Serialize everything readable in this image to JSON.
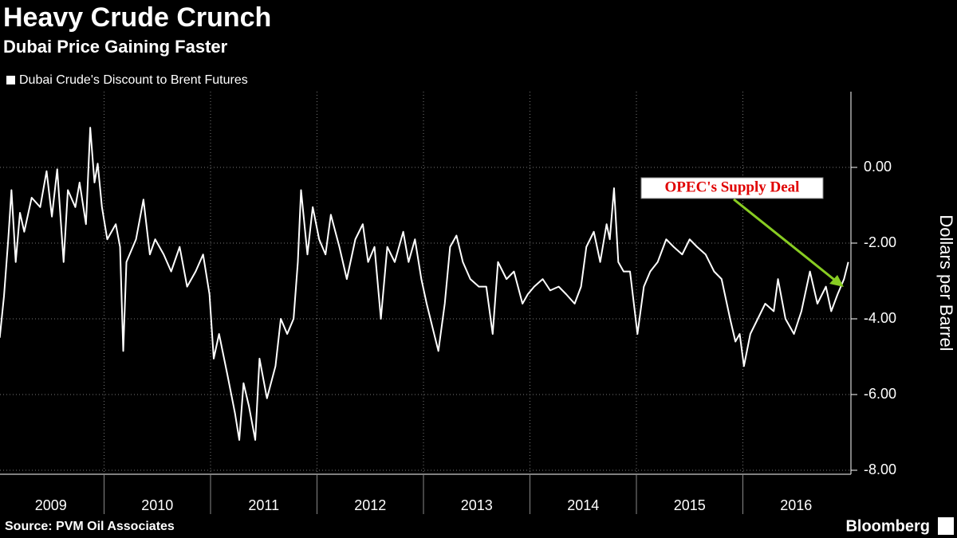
{
  "chart_data": {
    "type": "line",
    "title": "Heavy Crude Crunch",
    "subtitle": "Dubai Price Gaining Faster",
    "y_label": "Dollars per Barrel",
    "annotation": "OPEC's Supply Deal",
    "source": "Source: PVM Oil Associates",
    "brand": "Bloomberg",
    "x": [
      2009.02,
      2009.06,
      2009.1,
      2009.13,
      2009.17,
      2009.21,
      2009.25,
      2009.32,
      2009.4,
      2009.46,
      2009.51,
      2009.56,
      2009.62,
      2009.66,
      2009.73,
      2009.77,
      2009.83,
      2009.87,
      2009.91,
      2009.94,
      2009.98,
      2010.03,
      2010.11,
      2010.15,
      2010.18,
      2010.21,
      2010.3,
      2010.37,
      2010.43,
      2010.48,
      2010.56,
      2010.63,
      2010.71,
      2010.78,
      2010.86,
      2010.93,
      2010.99,
      2011.03,
      2011.08,
      2011.16,
      2011.23,
      2011.27,
      2011.31,
      2011.36,
      2011.42,
      2011.46,
      2011.53,
      2011.61,
      2011.66,
      2011.72,
      2011.78,
      2011.82,
      2011.85,
      2011.91,
      2011.96,
      2012.02,
      2012.08,
      2012.13,
      2012.21,
      2012.28,
      2012.36,
      2012.43,
      2012.48,
      2012.54,
      2012.6,
      2012.66,
      2012.73,
      2012.81,
      2012.86,
      2012.92,
      2012.98,
      2013.03,
      2013.1,
      2013.14,
      2013.2,
      2013.25,
      2013.31,
      2013.37,
      2013.44,
      2013.52,
      2013.59,
      2013.65,
      2013.7,
      2013.78,
      2013.85,
      2013.93,
      2013.98,
      2014.04,
      2014.12,
      2014.19,
      2014.27,
      2014.34,
      2014.42,
      2014.48,
      2014.53,
      2014.6,
      2014.66,
      2014.72,
      2014.75,
      2014.79,
      2014.83,
      2014.88,
      2014.94,
      2015.01,
      2015.07,
      2015.13,
      2015.2,
      2015.28,
      2015.35,
      2015.43,
      2015.5,
      2015.57,
      2015.65,
      2015.73,
      2015.8,
      2015.88,
      2015.93,
      2015.97,
      2016.01,
      2016.07,
      2016.14,
      2016.21,
      2016.29,
      2016.33,
      2016.4,
      2016.48,
      2016.55,
      2016.63,
      2016.7,
      2016.78,
      2016.83,
      2016.89,
      2016.95,
      2016.99
    ],
    "series": [
      {
        "name": "Dubai Crude's Discount to Brent Futures",
        "color": "#ffffff",
        "values": [
          -4.5,
          -3.4,
          -1.9,
          -0.6,
          -2.5,
          -1.2,
          -1.7,
          -0.8,
          -1.05,
          -0.1,
          -1.3,
          -0.05,
          -2.5,
          -0.6,
          -1.05,
          -0.4,
          -1.5,
          1.05,
          -0.4,
          0.1,
          -1.05,
          -1.9,
          -1.5,
          -2.1,
          -4.85,
          -2.5,
          -1.9,
          -0.85,
          -2.3,
          -1.9,
          -2.3,
          -2.75,
          -2.1,
          -3.15,
          -2.75,
          -2.3,
          -3.35,
          -5.05,
          -4.4,
          -5.5,
          -6.5,
          -7.2,
          -5.7,
          -6.3,
          -7.2,
          -5.05,
          -6.1,
          -5.25,
          -4.0,
          -4.4,
          -4.0,
          -2.5,
          -0.6,
          -2.3,
          -1.05,
          -1.9,
          -2.3,
          -1.25,
          -2.1,
          -2.95,
          -1.9,
          -1.5,
          -2.5,
          -2.1,
          -4.0,
          -2.1,
          -2.5,
          -1.7,
          -2.5,
          -1.9,
          -2.95,
          -3.6,
          -4.4,
          -4.85,
          -3.6,
          -2.1,
          -1.8,
          -2.5,
          -2.95,
          -3.15,
          -3.15,
          -4.4,
          -2.5,
          -2.95,
          -2.75,
          -3.6,
          -3.35,
          -3.15,
          -2.95,
          -3.25,
          -3.15,
          -3.35,
          -3.6,
          -3.15,
          -2.1,
          -1.7,
          -2.5,
          -1.5,
          -1.9,
          -0.55,
          -2.5,
          -2.75,
          -2.75,
          -4.4,
          -3.15,
          -2.75,
          -2.5,
          -1.9,
          -2.1,
          -2.3,
          -1.9,
          -2.1,
          -2.3,
          -2.75,
          -2.95,
          -4.0,
          -4.6,
          -4.4,
          -5.25,
          -4.4,
          -4.0,
          -3.6,
          -3.8,
          -2.95,
          -4.0,
          -4.4,
          -3.8,
          -2.75,
          -3.6,
          -3.15,
          -3.8,
          -3.35,
          -2.95,
          -2.5
        ]
      }
    ],
    "xlim": [
      2009,
      2017
    ],
    "xticks": [
      {
        "value": 2009.5,
        "label": "2009"
      },
      {
        "value": 2010.5,
        "label": "2010"
      },
      {
        "value": 2011.5,
        "label": "2011"
      },
      {
        "value": 2012.5,
        "label": "2012"
      },
      {
        "value": 2013.5,
        "label": "2013"
      },
      {
        "value": 2014.5,
        "label": "2014"
      },
      {
        "value": 2015.5,
        "label": "2015"
      },
      {
        "value": 2016.5,
        "label": "2016"
      }
    ],
    "ylim": [
      -8,
      2
    ],
    "yticks": [
      {
        "value": 0,
        "label": "0.00"
      },
      {
        "value": -2,
        "label": "-2.00"
      },
      {
        "value": -4,
        "label": "-4.00"
      },
      {
        "value": -6,
        "label": "-6.00"
      },
      {
        "value": -8,
        "label": "-8.00"
      }
    ],
    "grid": true,
    "legend": "top-left"
  }
}
